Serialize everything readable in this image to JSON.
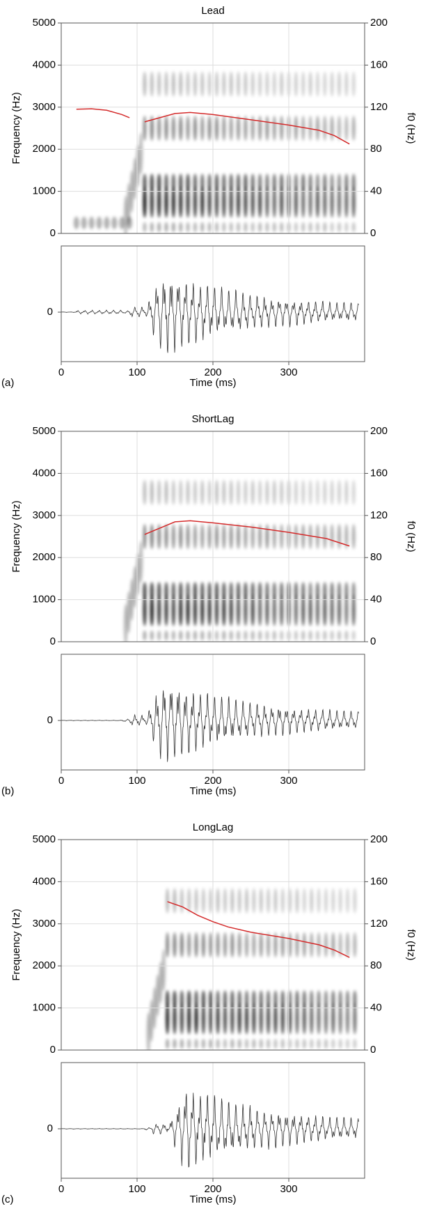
{
  "chart_data": [
    {
      "type": "spectrogram",
      "title": "Lead",
      "panel_label": "(a)",
      "xlabel": "Time (ms)",
      "ylabel": "Frequency (Hz)",
      "y2label": "f0 (Hz)",
      "xlim": [
        0,
        400
      ],
      "xticks": [
        0,
        100,
        200,
        300
      ],
      "ylim": [
        0,
        5000
      ],
      "yticks": [
        0,
        1000,
        2000,
        3000,
        4000,
        5000
      ],
      "y2lim": [
        0,
        200
      ],
      "y2ticks": [
        0,
        40,
        80,
        120,
        160,
        200
      ],
      "grid": true,
      "waveform_yticks": [
        0
      ],
      "f0": {
        "color": "#d42a2a",
        "axis": "y2",
        "x": [
          20,
          40,
          60,
          80,
          90,
          100,
          110,
          130,
          150,
          170,
          200,
          250,
          300,
          340,
          360,
          380
        ],
        "values": [
          118,
          118.5,
          117,
          113,
          110,
          null,
          106,
          110,
          114,
          115,
          113,
          108,
          103,
          98,
          93,
          85
        ]
      }
    },
    {
      "type": "spectrogram",
      "title": "ShortLag",
      "panel_label": "(b)",
      "xlabel": "Time (ms)",
      "ylabel": "Frequency (Hz)",
      "y2label": "f0 (Hz)",
      "xlim": [
        0,
        400
      ],
      "xticks": [
        0,
        100,
        200,
        300
      ],
      "ylim": [
        0,
        5000
      ],
      "yticks": [
        0,
        1000,
        2000,
        3000,
        4000,
        5000
      ],
      "y2lim": [
        0,
        200
      ],
      "y2ticks": [
        0,
        40,
        80,
        120,
        160,
        200
      ],
      "grid": true,
      "waveform_yticks": [
        0
      ],
      "f0": {
        "color": "#d42a2a",
        "axis": "y2",
        "x": [
          110,
          130,
          150,
          170,
          200,
          250,
          300,
          350,
          380
        ],
        "values": [
          102,
          108,
          114,
          115,
          113,
          109,
          104,
          98,
          91
        ]
      }
    },
    {
      "type": "spectrogram",
      "title": "LongLag",
      "panel_label": "(c)",
      "xlabel": "Time (ms)",
      "ylabel": "Frequency (Hz)",
      "y2label": "f0 (Hz)",
      "xlim": [
        0,
        400
      ],
      "xticks": [
        0,
        100,
        200,
        300
      ],
      "ylim": [
        0,
        5000
      ],
      "yticks": [
        0,
        1000,
        2000,
        3000,
        4000,
        5000
      ],
      "y2lim": [
        0,
        200
      ],
      "y2ticks": [
        0,
        40,
        80,
        120,
        160,
        200
      ],
      "grid": true,
      "waveform_yticks": [
        0
      ],
      "f0": {
        "color": "#d42a2a",
        "axis": "y2",
        "x": [
          140,
          160,
          180,
          200,
          220,
          250,
          300,
          340,
          360,
          380
        ],
        "values": [
          141,
          136,
          128,
          122,
          117,
          112,
          106,
          100,
          95,
          88
        ]
      }
    }
  ]
}
